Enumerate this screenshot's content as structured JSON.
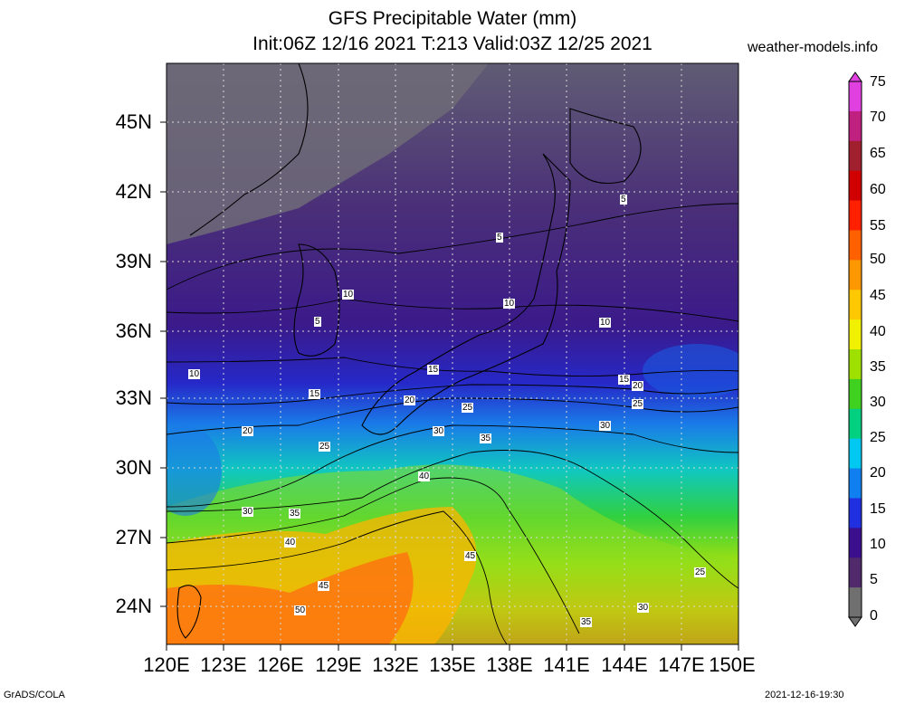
{
  "header": {
    "title": "GFS Precipitable Water (mm)",
    "subtitle": "Init:06Z 12/16 2021 T:213 Valid:03Z 12/25 2021",
    "site": "weather-models.info"
  },
  "map": {
    "lat_labels": [
      "45N",
      "42N",
      "39N",
      "36N",
      "33N",
      "30N",
      "27N",
      "24N"
    ],
    "lon_labels": [
      "120E",
      "123E",
      "126E",
      "129E",
      "132E",
      "135E",
      "138E",
      "141E",
      "144E",
      "147E",
      "150E"
    ],
    "contour_labels": [
      "5",
      "5",
      "5",
      "10",
      "10",
      "10",
      "10",
      "15",
      "15",
      "15",
      "20",
      "20",
      "20",
      "25",
      "25",
      "25",
      "25",
      "30",
      "30",
      "30",
      "30",
      "35",
      "35",
      "35",
      "40",
      "40",
      "45",
      "45",
      "50"
    ]
  },
  "colorbar": {
    "ticks": [
      "75",
      "70",
      "65",
      "60",
      "55",
      "50",
      "45",
      "40",
      "35",
      "30",
      "25",
      "20",
      "15",
      "10",
      "5",
      "0"
    ],
    "colors": [
      "#e040e0",
      "#c02080",
      "#a02030",
      "#d00000",
      "#ff2000",
      "#ff6000",
      "#ff9800",
      "#ffc800",
      "#f0f000",
      "#a0e000",
      "#40d020",
      "#00d080",
      "#00c8f0",
      "#1080f0",
      "#2030e0",
      "#3a0e8c",
      "#502a6a",
      "#707070"
    ]
  },
  "footer": {
    "left": "GrADS/COLA",
    "right": "2021-12-16-19:30"
  }
}
